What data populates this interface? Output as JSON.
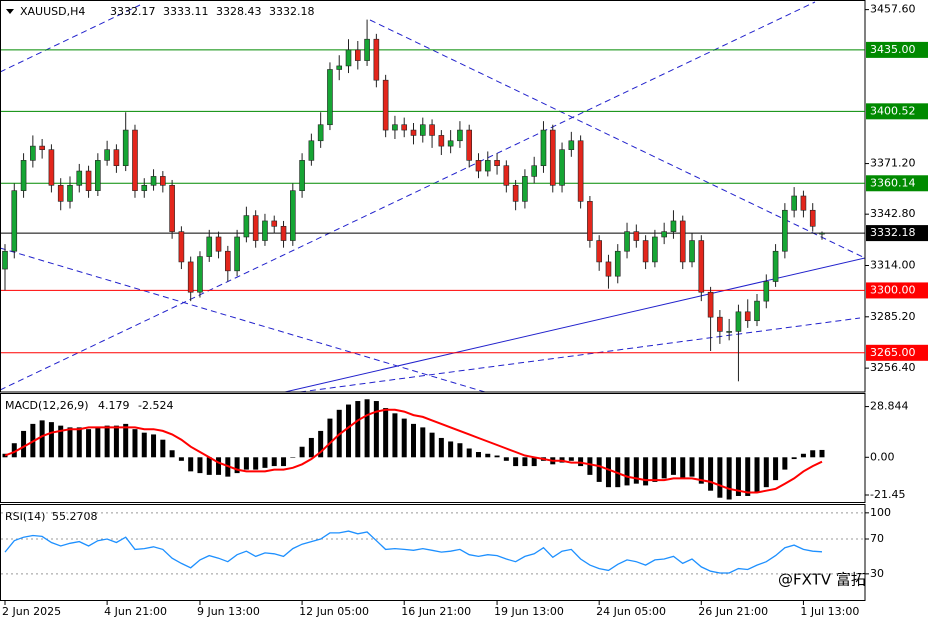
{
  "chart_data": [
    {
      "type": "candlestick",
      "title": "XAUUSD,H4",
      "categories": [
        "2 Jun 2025",
        null,
        null,
        null,
        null,
        null,
        null,
        null,
        null,
        null,
        null,
        "4 Jun 21:00",
        null,
        null,
        null,
        null,
        null,
        null,
        null,
        null,
        null,
        "9 Jun 13:00",
        null,
        null,
        null,
        null,
        null,
        null,
        null,
        null,
        null,
        null,
        "12 Jun 05:00",
        null,
        null,
        null,
        null,
        null,
        null,
        null,
        null,
        null,
        null,
        "16 Jun 21:00",
        null,
        null,
        null,
        null,
        null,
        null,
        null,
        null,
        null,
        "19 Jun 13:00",
        null,
        null,
        null,
        null,
        null,
        null,
        null,
        null,
        null,
        null,
        "24 Jun 05:00",
        null,
        null,
        null,
        null,
        null,
        null,
        null,
        null,
        null,
        null,
        "26 Jun 21:00",
        null,
        null,
        null,
        null,
        null,
        null,
        null,
        null,
        null,
        null,
        "1 Jul 13:00",
        null,
        null
      ],
      "open": [
        3312,
        3322,
        3356,
        3373,
        3381,
        3379,
        3359,
        3350,
        3359,
        3367,
        3356,
        3373,
        3379,
        3370,
        3390,
        3356,
        3359,
        3364,
        3359,
        3333,
        3316,
        3299,
        3319,
        3330,
        3322,
        3311,
        3330,
        3342,
        3328,
        3339,
        3336,
        3328,
        3356,
        3373,
        3384,
        3393,
        3424,
        3426,
        3435,
        3429,
        3441,
        3418,
        3390,
        3393,
        3390,
        3387,
        3393,
        3387,
        3381,
        3384,
        3390,
        3373,
        3367,
        3373,
        3370,
        3359,
        3350,
        3364,
        3370,
        3390,
        3359,
        3379,
        3384,
        3350,
        3328,
        3316,
        3308,
        3322,
        3333,
        3328,
        3316,
        3330,
        3333,
        3339,
        3316,
        3328,
        3299,
        3285,
        3277,
        3277,
        3288,
        3283,
        3294,
        3305,
        3322,
        3345,
        3353,
        3345,
        3332.17
      ],
      "high": [
        3326,
        3360,
        3377,
        3387,
        3385,
        3382,
        3363,
        3364,
        3371,
        3370,
        3377,
        3384,
        3382,
        3400,
        3393,
        3363,
        3368,
        3367,
        3362,
        3336,
        3319,
        3322,
        3334,
        3333,
        3325,
        3334,
        3347,
        3345,
        3343,
        3342,
        3339,
        3360,
        3377,
        3388,
        3400,
        3428,
        3432,
        3441,
        3440,
        3452,
        3444,
        3421,
        3398,
        3397,
        3394,
        3397,
        3396,
        3390,
        3390,
        3395,
        3393,
        3377,
        3378,
        3377,
        3373,
        3362,
        3368,
        3375,
        3395,
        3393,
        3383,
        3389,
        3387,
        3353,
        3331,
        3320,
        3326,
        3338,
        3337,
        3331,
        3334,
        3338,
        3345,
        3342,
        3332,
        3331,
        3302,
        3289,
        3284,
        3292,
        3295,
        3298,
        3309,
        3326,
        3349,
        3358,
        3356,
        3349,
        3333.11
      ],
      "low": [
        3300,
        3318,
        3352,
        3369,
        3374,
        3355,
        3345,
        3346,
        3355,
        3352,
        3353,
        3370,
        3366,
        3367,
        3352,
        3352,
        3356,
        3355,
        3329,
        3312,
        3294,
        3296,
        3316,
        3318,
        3305,
        3308,
        3327,
        3324,
        3325,
        3332,
        3324,
        3325,
        3352,
        3370,
        3380,
        3390,
        3418,
        3422,
        3424,
        3426,
        3414,
        3386,
        3385,
        3386,
        3382,
        3383,
        3380,
        3376,
        3377,
        3380,
        3369,
        3363,
        3364,
        3365,
        3355,
        3345,
        3346,
        3360,
        3366,
        3355,
        3355,
        3375,
        3346,
        3324,
        3311,
        3301,
        3304,
        3318,
        3324,
        3312,
        3313,
        3326,
        3329,
        3312,
        3313,
        3294,
        3266,
        3270,
        3272,
        3249,
        3279,
        3280,
        3290,
        3302,
        3318,
        3341,
        3341,
        3333,
        3328.43
      ],
      "close": [
        3322,
        3356,
        3373,
        3381,
        3379,
        3359,
        3350,
        3359,
        3367,
        3356,
        3373,
        3379,
        3370,
        3390,
        3356,
        3359,
        3364,
        3359,
        3333,
        3316,
        3299,
        3319,
        3330,
        3322,
        3311,
        3330,
        3342,
        3328,
        3339,
        3336,
        3328,
        3356,
        3373,
        3384,
        3393,
        3424,
        3426,
        3435,
        3429,
        3441,
        3418,
        3390,
        3393,
        3390,
        3387,
        3393,
        3387,
        3381,
        3384,
        3390,
        3373,
        3367,
        3373,
        3370,
        3359,
        3350,
        3364,
        3370,
        3390,
        3359,
        3379,
        3384,
        3350,
        3328,
        3316,
        3308,
        3322,
        3333,
        3328,
        3316,
        3330,
        3333,
        3339,
        3316,
        3328,
        3299,
        3285,
        3277,
        3277,
        3288,
        3283,
        3294,
        3305,
        3322,
        3345,
        3353,
        3345,
        3336,
        3332.18
      ],
      "up_color": "#16a534",
      "down_color": "#e3261c",
      "ylim": [
        3243,
        3463
      ],
      "yticks": [
        {
          "value": 3457.6,
          "label": "3457.60"
        },
        {
          "value": 3371.2,
          "label": "3371.20"
        },
        {
          "value": 3342.8,
          "label": "3342.80"
        },
        {
          "value": 3314,
          "label": "3314.00"
        },
        {
          "value": 3285.2,
          "label": "3285.20"
        },
        {
          "value": 3256.4,
          "label": "3256.40"
        }
      ],
      "levels": [
        {
          "value": 3435,
          "label": "3435.00",
          "color": "#008a00"
        },
        {
          "value": 3400.52,
          "color": "#008a00"
        },
        {
          "value": 3360.14,
          "color": "#008a00"
        },
        {
          "value": 3332.18,
          "color": "#000000"
        },
        {
          "value": 3300,
          "label": "3300.00",
          "color": "#ff0000"
        },
        {
          "value": 3265,
          "label": "3265.00",
          "color": "#ff0000"
        }
      ]
    },
    {
      "type": "macd",
      "title": "MACD(12,26,9)",
      "series": [
        {
          "color": "#000000",
          "values": [
            2,
            8,
            15,
            19,
            21,
            20,
            18,
            17,
            17,
            16,
            17,
            18,
            18,
            19,
            16,
            14,
            13,
            10,
            4,
            -2,
            -8,
            -9,
            -10,
            -10,
            -11,
            -9,
            -7,
            -7,
            -6,
            -5,
            -5,
            0,
            6,
            11,
            15,
            22,
            27,
            30,
            32,
            33,
            32,
            28,
            25,
            22,
            19,
            17,
            14,
            11,
            9,
            8,
            5,
            3,
            2,
            1,
            -2,
            -5,
            -5,
            -5,
            -2,
            -4,
            -3,
            -2,
            -5,
            -10,
            -14,
            -17,
            -17,
            -16,
            -15,
            -16,
            -14,
            -12,
            -10,
            -12,
            -11,
            -15,
            -19,
            -23,
            -24,
            -22,
            -22,
            -20,
            -17,
            -13,
            -7,
            -1,
            2,
            4,
            4.179
          ]
        },
        {
          "color": "#ff0000",
          "values": [
            1,
            3,
            6,
            9,
            12,
            14,
            15,
            16,
            16,
            17,
            17,
            17,
            17,
            17,
            17,
            16,
            16,
            15,
            13,
            10,
            6,
            3,
            0,
            -3,
            -5,
            -7,
            -8,
            -8,
            -8,
            -7,
            -7,
            -6,
            -4,
            -1,
            3,
            8,
            13,
            17,
            21,
            24,
            26,
            27,
            27,
            26,
            24,
            23,
            21,
            19,
            17,
            15,
            13,
            11,
            9,
            7,
            5,
            3,
            1,
            0,
            -1,
            -2,
            -2,
            -3,
            -3,
            -4,
            -5,
            -7,
            -9,
            -11,
            -12,
            -13,
            -13,
            -13,
            -12,
            -12,
            -12,
            -13,
            -14,
            -16,
            -18,
            -19,
            -20,
            -20,
            -19,
            -18,
            -15,
            -12,
            -8,
            -5,
            -2.524
          ]
        }
      ],
      "ylim": [
        -26,
        36
      ],
      "yticks": [
        28.844,
        {
          "value": 0,
          "label": "0.00"
        },
        -21.45
      ]
    },
    {
      "type": "line",
      "title": "RSI(14)",
      "series": [
        {
          "color": "#1e90ff",
          "values": [
            55,
            68,
            72,
            74,
            73,
            66,
            62,
            65,
            67,
            62,
            68,
            70,
            66,
            72,
            58,
            59,
            61,
            58,
            48,
            42,
            37,
            46,
            51,
            48,
            44,
            52,
            56,
            50,
            54,
            53,
            50,
            59,
            64,
            67,
            70,
            77,
            77,
            79,
            76,
            78,
            68,
            58,
            59,
            58,
            57,
            59,
            57,
            55,
            56,
            58,
            52,
            50,
            52,
            51,
            47,
            44,
            50,
            53,
            60,
            49,
            56,
            58,
            47,
            40,
            36,
            34,
            41,
            46,
            44,
            40,
            46,
            47,
            50,
            42,
            47,
            38,
            33,
            31,
            31,
            36,
            35,
            40,
            44,
            51,
            60,
            63,
            58,
            56,
            55.2708
          ]
        }
      ],
      "ylim": [
        0,
        109
      ],
      "yticks": [
        100,
        70,
        30
      ],
      "grid": true
    }
  ],
  "watermark": "@FXTV 富拓"
}
